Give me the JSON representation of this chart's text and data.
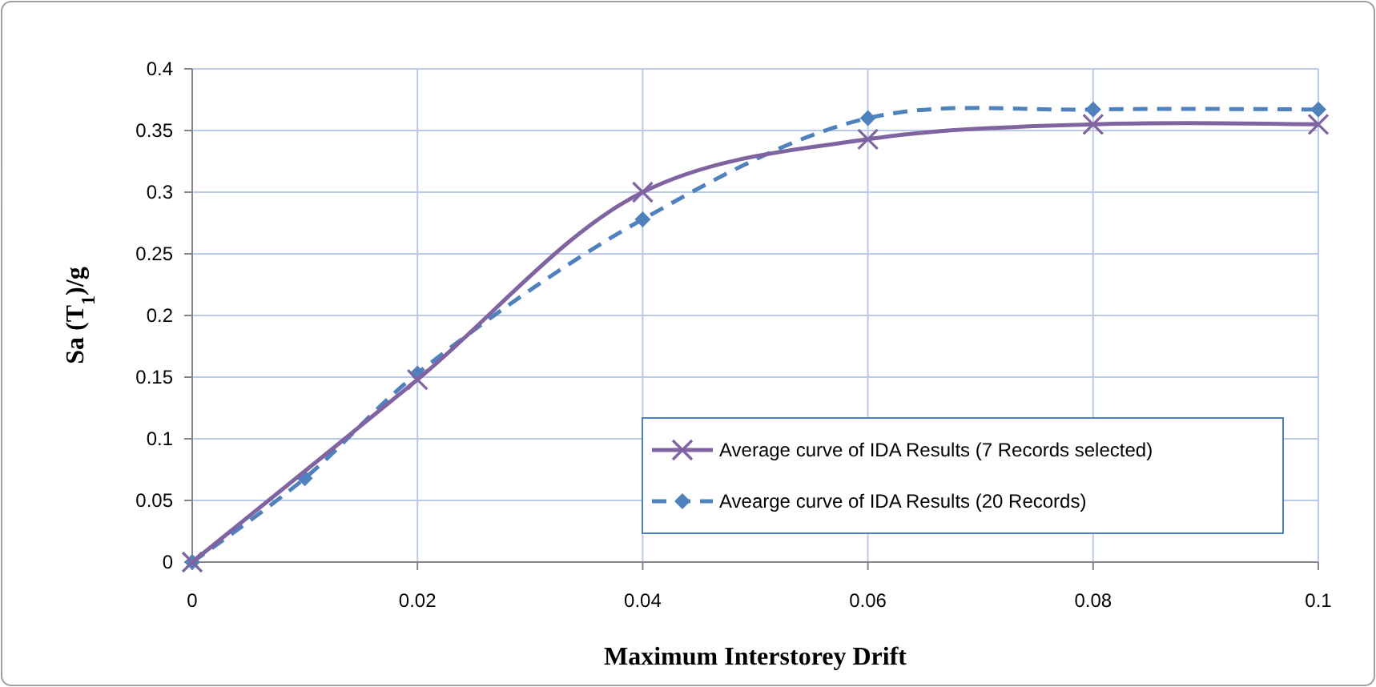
{
  "chart_data": {
    "type": "line",
    "xlabel": "Maximum Interstorey Drift",
    "ylabel": "Sa (T$_{1}$)/g",
    "xlim": [
      0,
      0.1
    ],
    "xticks": [
      0,
      0.02,
      0.04,
      0.06,
      0.08,
      0.1
    ],
    "ylim": [
      0,
      0.4
    ],
    "yticks": [
      0,
      0.05,
      0.1,
      0.15,
      0.2,
      0.25,
      0.3,
      0.35,
      0.4
    ],
    "grid": true,
    "legend": "bottom right",
    "series": [
      {
        "name": "Average curve of IDA  Results (7 Records selected)",
        "color": "#8064a2",
        "marker": "cross",
        "line_style": "solid",
        "x": [
          0,
          0.02,
          0.04,
          0.06,
          0.08,
          0.1
        ],
        "values": [
          0,
          0.148,
          0.3,
          0.343,
          0.355,
          0.355
        ]
      },
      {
        "name": "Avearge curve of IDA  Results (20 Records)",
        "color": "#4f81bd",
        "marker": "diamond",
        "line_style": "dashed",
        "x": [
          0,
          0.01,
          0.02,
          0.04,
          0.06,
          0.08,
          0.1
        ],
        "values": [
          0,
          0.068,
          0.153,
          0.278,
          0.36,
          0.367,
          0.367
        ]
      }
    ]
  }
}
